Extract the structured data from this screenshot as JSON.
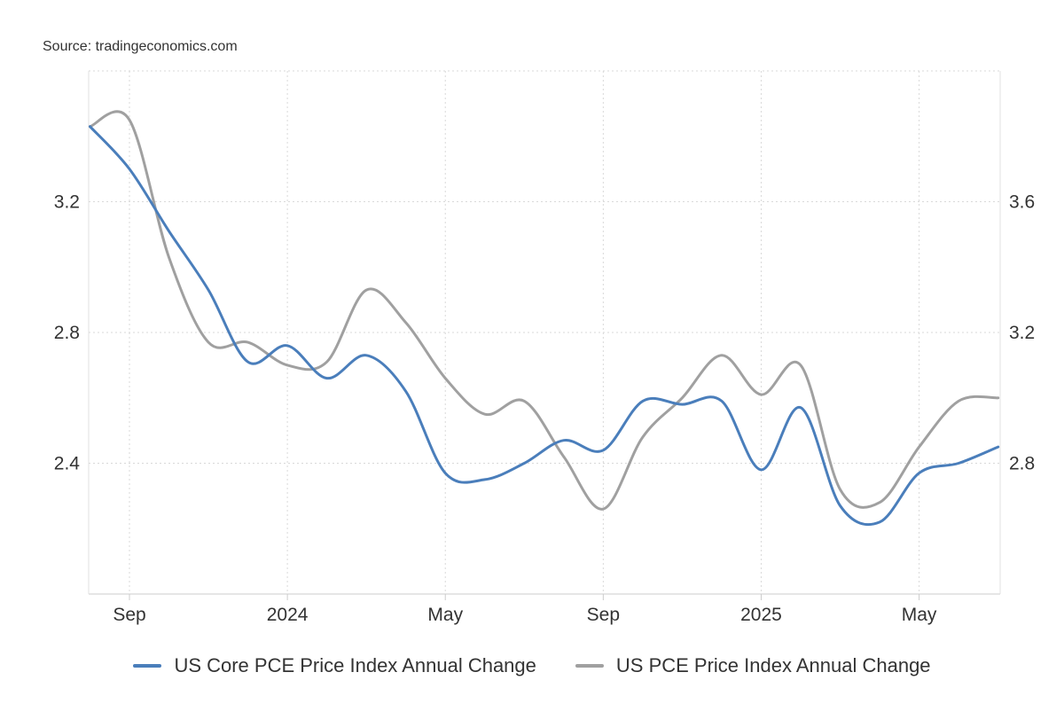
{
  "source": "Source: tradingeconomics.com",
  "chart_data": {
    "type": "line",
    "x_ticks": [
      "Sep",
      "2024",
      "May",
      "Sep",
      "2025",
      "May"
    ],
    "x_tick_dates": [
      "2023-09",
      "2024-01",
      "2024-05",
      "2024-09",
      "2025-01",
      "2025-05"
    ],
    "y_left": {
      "ticks": [
        "3.2",
        "2.8",
        "2.4"
      ],
      "range": [
        2.0,
        3.6
      ]
    },
    "y_right": {
      "ticks": [
        "3.6",
        "3.2",
        "2.8"
      ],
      "range": [
        2.4,
        4.0
      ]
    },
    "grid": true,
    "legend_position": "bottom",
    "series": [
      {
        "name": "US Core PCE Price Index Annual Change",
        "axis": "left",
        "color": "#4a7ebb",
        "x": [
          "2023-08",
          "2023-09",
          "2023-10",
          "2023-11",
          "2023-12",
          "2024-01",
          "2024-02",
          "2024-03",
          "2024-04",
          "2024-05",
          "2024-06",
          "2024-07",
          "2024-08",
          "2024-09",
          "2024-10",
          "2024-11",
          "2024-12",
          "2025-01",
          "2025-02",
          "2025-03",
          "2025-04",
          "2025-05",
          "2025-06",
          "2025-07"
        ],
        "values": [
          3.43,
          3.3,
          3.11,
          2.93,
          2.71,
          2.76,
          2.66,
          2.73,
          2.62,
          2.37,
          2.35,
          2.4,
          2.47,
          2.44,
          2.59,
          2.58,
          2.59,
          2.38,
          2.57,
          2.27,
          2.22,
          2.37,
          2.4,
          2.45
        ]
      },
      {
        "name": "US PCE Price Index Annual Change",
        "axis": "right",
        "color": "#a0a0a0",
        "x": [
          "2023-08",
          "2023-09",
          "2023-10",
          "2023-11",
          "2023-12",
          "2024-01",
          "2024-02",
          "2024-03",
          "2024-04",
          "2024-05",
          "2024-06",
          "2024-07",
          "2024-08",
          "2024-09",
          "2024-10",
          "2024-11",
          "2024-12",
          "2025-01",
          "2025-02",
          "2025-03",
          "2025-04",
          "2025-05",
          "2025-06",
          "2025-07"
        ],
        "values": [
          3.83,
          3.85,
          3.43,
          3.17,
          3.17,
          3.1,
          3.11,
          3.33,
          3.23,
          3.06,
          2.95,
          2.99,
          2.82,
          2.66,
          2.88,
          3.0,
          3.13,
          3.01,
          3.1,
          2.72,
          2.68,
          2.85,
          2.99,
          3.0
        ]
      }
    ]
  }
}
